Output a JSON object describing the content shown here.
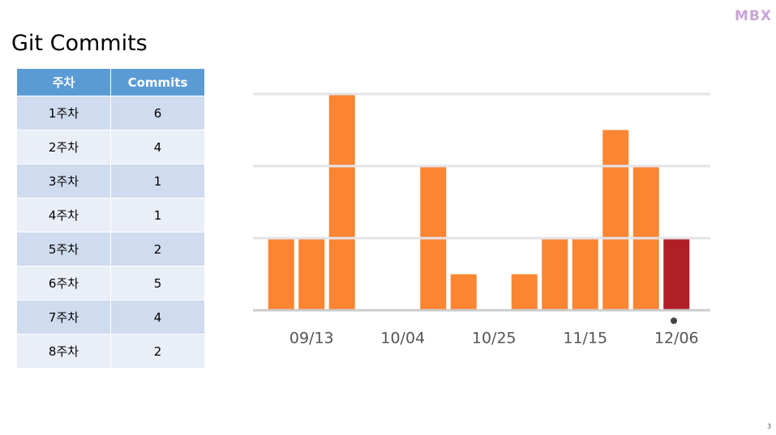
{
  "header": {
    "title": "Git Commits",
    "logo": "MBX"
  },
  "table": {
    "columns": [
      "주차",
      "Commits"
    ],
    "rows": [
      [
        "1주차",
        6
      ],
      [
        "2주차",
        4
      ],
      [
        "3주차",
        1
      ],
      [
        "4주차",
        1
      ],
      [
        "5주차",
        2
      ],
      [
        "6주차",
        5
      ],
      [
        "7주차",
        4
      ],
      [
        "8주차",
        2
      ]
    ]
  },
  "chart_data": {
    "type": "bar",
    "categories": [
      null,
      "09/13",
      null,
      null,
      "10/04",
      null,
      null,
      "10/25",
      null,
      null,
      "11/15",
      null,
      null,
      "12/06"
    ],
    "values": [
      2,
      2,
      6,
      0,
      0,
      4,
      1,
      0,
      1,
      2,
      2,
      5,
      4,
      2
    ],
    "colors": [
      "#fb8533",
      "#fb8533",
      "#fb8533",
      "#fb8533",
      "#fb8533",
      "#fb8533",
      "#fb8533",
      "#fb8533",
      "#fb8533",
      "#fb8533",
      "#fb8533",
      "#fb8533",
      "#fb8533",
      "#b01e28"
    ],
    "ylim": [
      0,
      6
    ],
    "yticks": [
      0,
      2,
      4,
      6
    ],
    "grid": true
  },
  "footer": {
    "page_number": 3
  }
}
